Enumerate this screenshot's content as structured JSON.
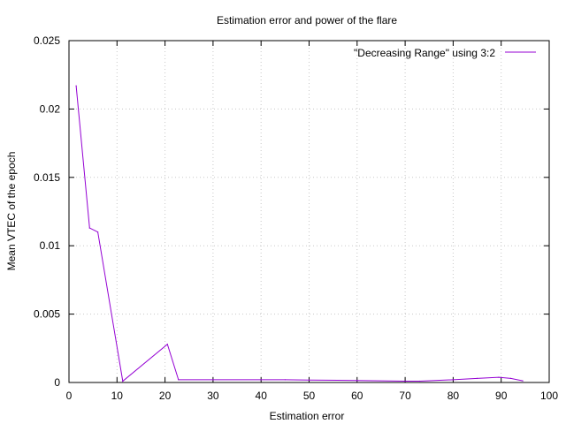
{
  "chart_data": {
    "type": "line",
    "title": "Estimation error and power of the flare",
    "xlabel": "Estimation error",
    "ylabel": "Mean VTEC of the epoch",
    "xlim": [
      0,
      100
    ],
    "ylim": [
      0,
      0.025
    ],
    "x_ticks": [
      "0",
      "10",
      "20",
      "30",
      "40",
      "50",
      "60",
      "70",
      "80",
      "90",
      "100"
    ],
    "y_ticks": [
      "0",
      "0.005",
      "0.01",
      "0.015",
      "0.02",
      "0.025"
    ],
    "grid": true,
    "legend_position": "top-right",
    "series": [
      {
        "name": "\"Decreasing Range\" using 3:2",
        "color": "#9400d3",
        "points": [
          [
            1.5,
            0.0217
          ],
          [
            4.3,
            0.0113
          ],
          [
            6.0,
            0.011
          ],
          [
            11.2,
            0.0001
          ],
          [
            20.5,
            0.0028
          ],
          [
            22.8,
            0.0002
          ],
          [
            30.0,
            0.0002
          ],
          [
            40.0,
            0.0002
          ],
          [
            45.0,
            0.0002
          ],
          [
            50.0,
            0.00018
          ],
          [
            60.0,
            0.00015
          ],
          [
            70.0,
            0.0001
          ],
          [
            73.0,
            0.0001
          ],
          [
            80.0,
            0.0002
          ],
          [
            85.0,
            0.0003
          ],
          [
            89.5,
            0.00038
          ],
          [
            92.0,
            0.0003
          ],
          [
            94.5,
            0.00012
          ]
        ]
      }
    ]
  }
}
